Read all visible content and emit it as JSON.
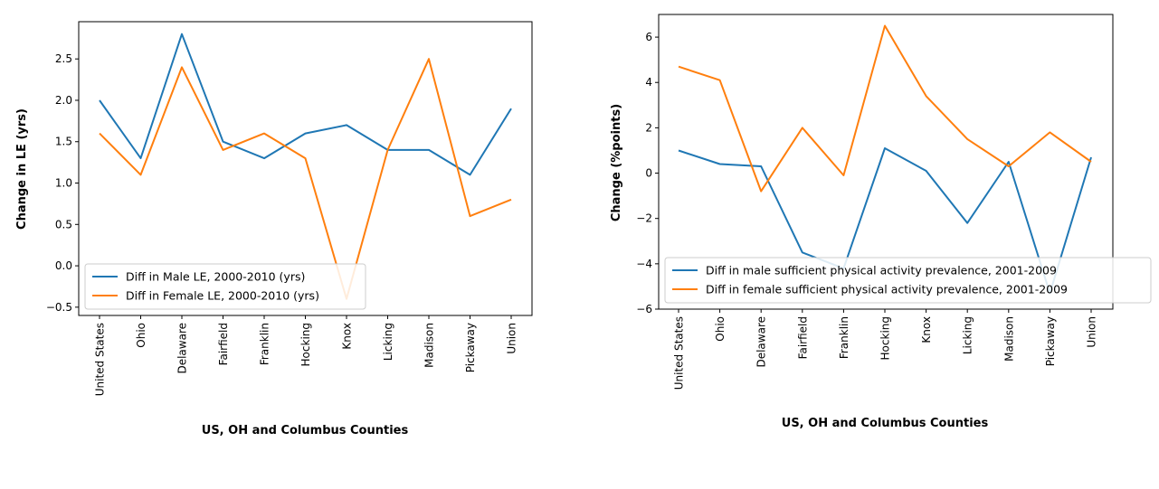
{
  "chart_data": [
    {
      "type": "line",
      "categories": [
        "United States",
        "Ohio",
        "Delaware",
        "Fairfield",
        "Franklin",
        "Hocking",
        "Knox",
        "Licking",
        "Madison",
        "Pickaway",
        "Union"
      ],
      "series": [
        {
          "name": "Diff in Male LE, 2000-2010 (yrs)",
          "color": "#1f77b4",
          "values": [
            2.0,
            1.3,
            2.8,
            1.5,
            1.3,
            1.6,
            1.7,
            1.4,
            1.4,
            1.1,
            1.9
          ]
        },
        {
          "name": "Diff in Female LE, 2000-2010 (yrs)",
          "color": "#ff7f0e",
          "values": [
            1.6,
            1.1,
            2.4,
            1.4,
            1.6,
            1.3,
            -0.4,
            1.4,
            2.5,
            0.6,
            0.8
          ]
        }
      ],
      "xlabel": "US, OH and Columbus Counties",
      "ylabel": "Change in LE (yrs)",
      "ylim": [
        -0.6,
        2.95
      ],
      "yticks": [
        -0.5,
        0.0,
        0.5,
        1.0,
        1.5,
        2.0,
        2.5
      ],
      "ytick_labels": [
        "−0.5",
        "0.0",
        "0.5",
        "1.0",
        "1.5",
        "2.0",
        "2.5"
      ],
      "grid": false,
      "legend_position": "lower-left"
    },
    {
      "type": "line",
      "categories": [
        "United States",
        "Ohio",
        "Delaware",
        "Fairfield",
        "Franklin",
        "Hocking",
        "Knox",
        "Licking",
        "Madison",
        "Pickaway",
        "Union"
      ],
      "series": [
        {
          "name": "Diff in male sufficient physical activity prevalence, 2001-2009",
          "color": "#1f77b4",
          "values": [
            1.0,
            0.4,
            0.3,
            -3.5,
            -4.2,
            1.1,
            0.1,
            -2.2,
            0.5,
            -5.3,
            0.7
          ]
        },
        {
          "name": "Diff in female sufficient physical activity prevalence, 2001-2009",
          "color": "#ff7f0e",
          "values": [
            4.7,
            4.1,
            -0.8,
            2.0,
            -0.1,
            6.5,
            3.4,
            1.5,
            0.3,
            1.8,
            0.5
          ]
        }
      ],
      "xlabel": "US, OH and Columbus Counties",
      "ylabel": "Change (%points)",
      "ylim": [
        -6,
        7
      ],
      "yticks": [
        -6,
        -4,
        -2,
        0,
        2,
        4,
        6
      ],
      "ytick_labels": [
        "−6",
        "−4",
        "−2",
        "0",
        "2",
        "4",
        "6"
      ],
      "grid": false,
      "legend_position": "lower-left"
    }
  ]
}
